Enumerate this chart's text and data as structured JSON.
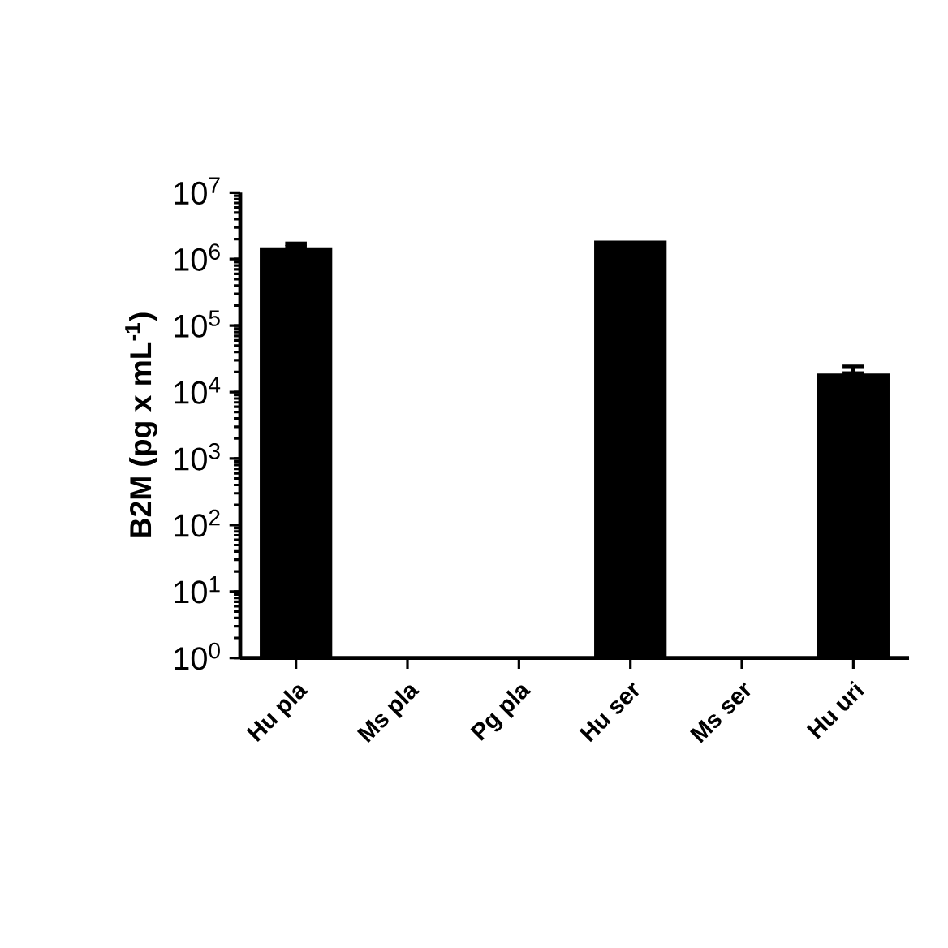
{
  "chart_data": {
    "type": "bar",
    "ylabel": "B2M (pg x mL$^{-1}$)",
    "categories": [
      "Hu pla",
      "Ms pla",
      "Pg pla",
      "Hu ser",
      "Ms ser",
      "Hu uri"
    ],
    "values": [
      1500000,
      null,
      null,
      1900000,
      null,
      19000
    ],
    "errors": [
      [
        1500000,
        1700000
      ],
      null,
      null,
      null,
      null,
      [
        19000,
        24000
      ]
    ],
    "color": "#000000",
    "log": "y",
    "ylim": [
      1,
      10000000
    ],
    "yticks": [
      {
        "value": 1,
        "label": "10$^{0}$"
      },
      {
        "value": 10,
        "label": "10$^{1}$"
      },
      {
        "value": 100,
        "label": "10$^{2}$"
      },
      {
        "value": 1000,
        "label": "10$^{3}$"
      },
      {
        "value": 10000,
        "label": "10$^{4}$"
      },
      {
        "value": 100000,
        "label": "10$^{5}$"
      },
      {
        "value": 1000000,
        "label": "10$^{6}$"
      },
      {
        "value": 10000000,
        "label": "10$^{7}$"
      }
    ],
    "grid": false
  }
}
